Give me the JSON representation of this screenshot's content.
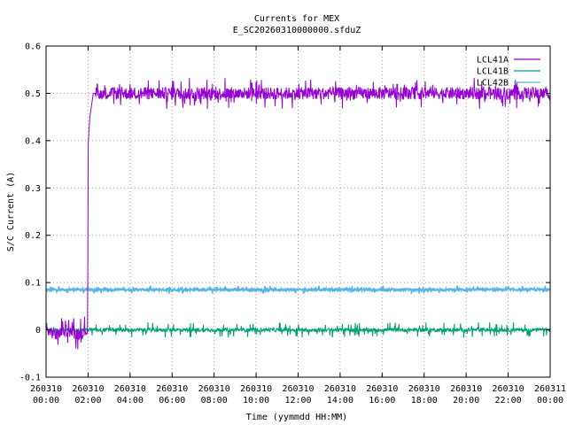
{
  "chart_data": {
    "type": "line",
    "title": "Currents for MEX",
    "subtitle": "E_SC20260310000000.sfduZ",
    "xlabel": "Time (yymmdd HH:MM)",
    "ylabel": "S/C Current (A)",
    "xlim": [
      "2026-03-10 00:00",
      "2026-03-11 00:00"
    ],
    "ylim": [
      -0.1,
      0.6
    ],
    "grid": true,
    "legend_position": "top-right",
    "x_ticks": [
      {
        "date": "260310",
        "time": "00:00"
      },
      {
        "date": "260310",
        "time": "02:00"
      },
      {
        "date": "260310",
        "time": "04:00"
      },
      {
        "date": "260310",
        "time": "06:00"
      },
      {
        "date": "260310",
        "time": "08:00"
      },
      {
        "date": "260310",
        "time": "10:00"
      },
      {
        "date": "260310",
        "time": "12:00"
      },
      {
        "date": "260310",
        "time": "14:00"
      },
      {
        "date": "260310",
        "time": "16:00"
      },
      {
        "date": "260310",
        "time": "18:00"
      },
      {
        "date": "260310",
        "time": "20:00"
      },
      {
        "date": "260310",
        "time": "22:00"
      },
      {
        "date": "260311",
        "time": "00:00"
      }
    ],
    "y_ticks": [
      "-0.1",
      "0",
      "0.1",
      "0.2",
      "0.3",
      "0.4",
      "0.5",
      "0.6"
    ],
    "series": [
      {
        "name": "LCL41A",
        "color": "#9400d3",
        "x": [
          "2026-03-10 00:00",
          "2026-03-10 00:30",
          "2026-03-10 01:00",
          "2026-03-10 01:30",
          "2026-03-10 01:59",
          "2026-03-10 02:00",
          "2026-03-10 02:05",
          "2026-03-10 02:15",
          "2026-03-10 04:00",
          "2026-03-10 08:00",
          "2026-03-10 12:00",
          "2026-03-10 16:00",
          "2026-03-10 20:00",
          "2026-03-11 00:00"
        ],
        "y": [
          0.0,
          -0.01,
          0.0,
          -0.01,
          0.0,
          0.39,
          0.45,
          0.5,
          0.5,
          0.5,
          0.5,
          0.5,
          0.5,
          0.5
        ]
      },
      {
        "name": "LCL41B",
        "color": "#009e73",
        "x": [
          "2026-03-10 00:00",
          "2026-03-10 06:00",
          "2026-03-10 12:00",
          "2026-03-10 18:00",
          "2026-03-11 00:00"
        ],
        "y": [
          0.0,
          0.0,
          0.0,
          0.0,
          0.0
        ]
      },
      {
        "name": "LCL42B",
        "color": "#56b4e9",
        "x": [
          "2026-03-10 00:00",
          "2026-03-10 06:00",
          "2026-03-10 12:00",
          "2026-03-10 18:00",
          "2026-03-11 00:00"
        ],
        "y": [
          0.085,
          0.085,
          0.085,
          0.085,
          0.085
        ]
      }
    ]
  }
}
